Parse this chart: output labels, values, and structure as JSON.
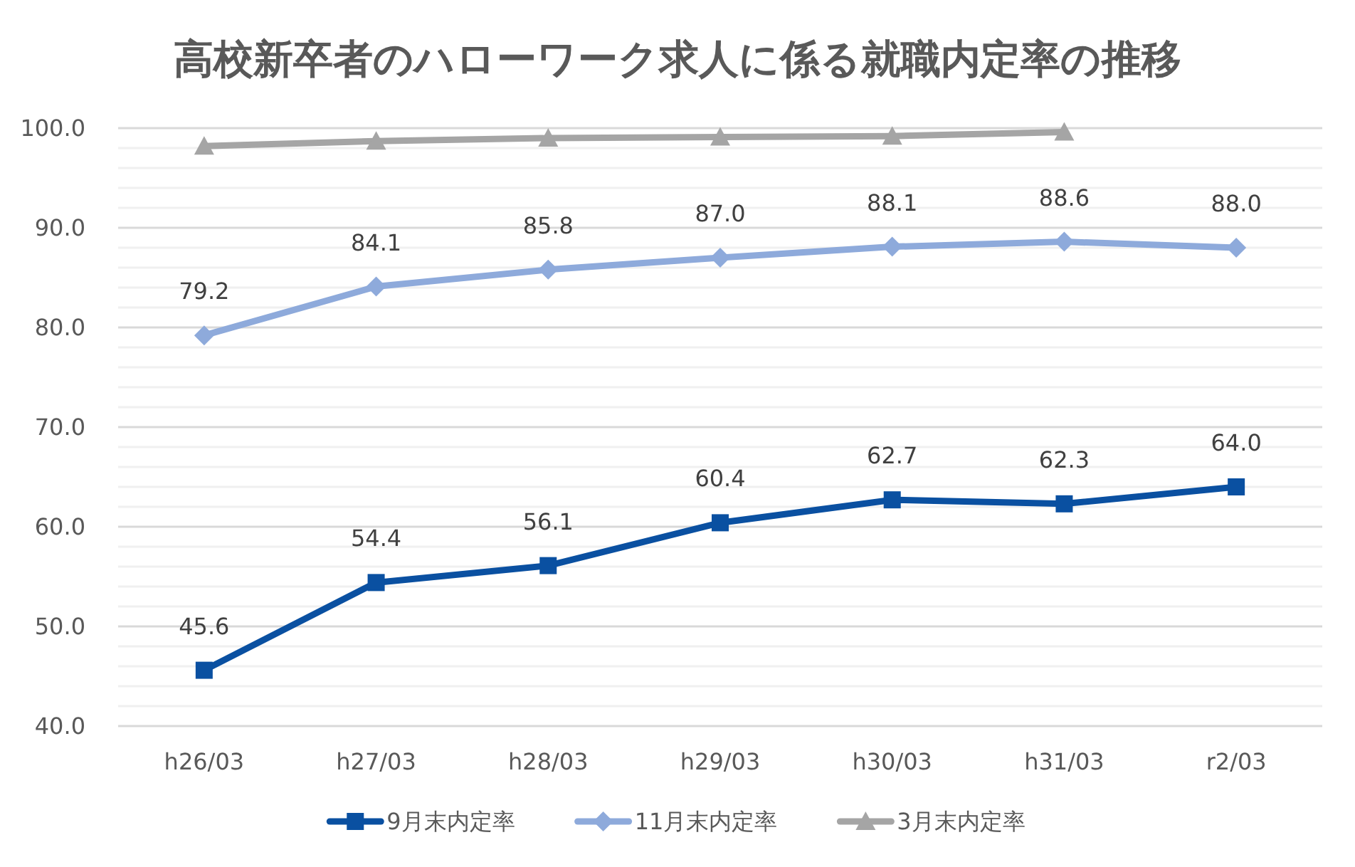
{
  "chart_data": {
    "type": "line",
    "title": "高校新卒者のハローワーク求人に係る就職内定率の推移",
    "categories": [
      "h26/03",
      "h27/03",
      "h28/03",
      "h29/03",
      "h30/03",
      "h31/03",
      "r2/03"
    ],
    "series": [
      {
        "name": "9月末内定率",
        "color": "#0a50a1",
        "marker": "square",
        "values": [
          45.6,
          54.4,
          56.1,
          60.4,
          62.7,
          62.3,
          64.0
        ],
        "value_labels": [
          "45.6",
          "54.4",
          "56.1",
          "60.4",
          "62.7",
          "62.3",
          "64.0"
        ]
      },
      {
        "name": "11月末内定率",
        "color": "#8eaadb",
        "marker": "diamond",
        "values": [
          79.2,
          84.1,
          85.8,
          87.0,
          88.1,
          88.6,
          88.0
        ],
        "value_labels": [
          "79.2",
          "84.1",
          "85.8",
          "87.0",
          "88.1",
          "88.6",
          "88.0"
        ]
      },
      {
        "name": "3月末内定率",
        "color": "#a5a5a5",
        "marker": "triangle",
        "values": [
          98.2,
          98.7,
          99.0,
          99.1,
          99.2,
          99.6,
          null
        ]
      }
    ],
    "ylim": [
      40,
      100
    ],
    "yticks": [
      {
        "value": 40,
        "label": "40.0"
      },
      {
        "value": 42,
        "label": null
      },
      {
        "value": 44,
        "label": null
      },
      {
        "value": 46,
        "label": null
      },
      {
        "value": 48,
        "label": null
      },
      {
        "value": 50,
        "label": "50.0"
      },
      {
        "value": 52,
        "label": null
      },
      {
        "value": 54,
        "label": null
      },
      {
        "value": 56,
        "label": null
      },
      {
        "value": 58,
        "label": null
      },
      {
        "value": 60,
        "label": "60.0"
      },
      {
        "value": 62,
        "label": null
      },
      {
        "value": 64,
        "label": null
      },
      {
        "value": 66,
        "label": null
      },
      {
        "value": 68,
        "label": null
      },
      {
        "value": 70,
        "label": "70.0"
      },
      {
        "value": 72,
        "label": null
      },
      {
        "value": 74,
        "label": null
      },
      {
        "value": 76,
        "label": null
      },
      {
        "value": 78,
        "label": null
      },
      {
        "value": 80,
        "label": "80.0"
      },
      {
        "value": 82,
        "label": null
      },
      {
        "value": 84,
        "label": null
      },
      {
        "value": 86,
        "label": null
      },
      {
        "value": 88,
        "label": null
      },
      {
        "value": 90,
        "label": "90.0"
      },
      {
        "value": 92,
        "label": null
      },
      {
        "value": 94,
        "label": null
      },
      {
        "value": 96,
        "label": null
      },
      {
        "value": 98,
        "label": null
      },
      {
        "value": 100,
        "label": "100.0"
      }
    ],
    "grid": "y",
    "legend": "bottom"
  }
}
